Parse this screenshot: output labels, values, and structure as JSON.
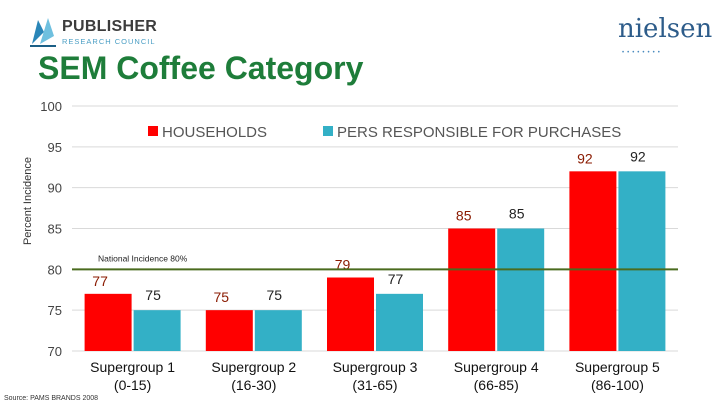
{
  "header": {
    "publisher_logo_name": "PUBLISHER",
    "publisher_logo_sub": "RESEARCH COUNCIL",
    "nielsen_logo_name": "nielsen",
    "nielsen_logo_dots": "••••••••"
  },
  "title": "SEM Coffee Category",
  "chart_data": {
    "type": "bar",
    "ylabel": "Percent Incidence",
    "ylim": [
      70,
      100
    ],
    "yticks": [
      70,
      75,
      80,
      85,
      90,
      95,
      100
    ],
    "grid": true,
    "legend_position": "top",
    "categories": [
      "Supergroup 1\n(0-15)",
      "Supergroup 2\n(16-30)",
      "Supergroup 3\n(31-65)",
      "Supergroup 4\n(66-85)",
      "Supergroup 5\n(86-100)"
    ],
    "series": [
      {
        "name": "HOUSEHOLDS",
        "values": [
          77,
          75,
          79,
          85,
          92
        ],
        "color": "#ff0000"
      },
      {
        "name": "PERS RESPONSIBLE FOR PURCHASES",
        "values": [
          75,
          75,
          77,
          85,
          92
        ],
        "color": "#33b0c6"
      }
    ],
    "reference_line": {
      "value": 80,
      "label": "National Incidence 80%",
      "color": "#4a6b1f"
    }
  },
  "source": "Source: PAMS BRANDS 2008"
}
